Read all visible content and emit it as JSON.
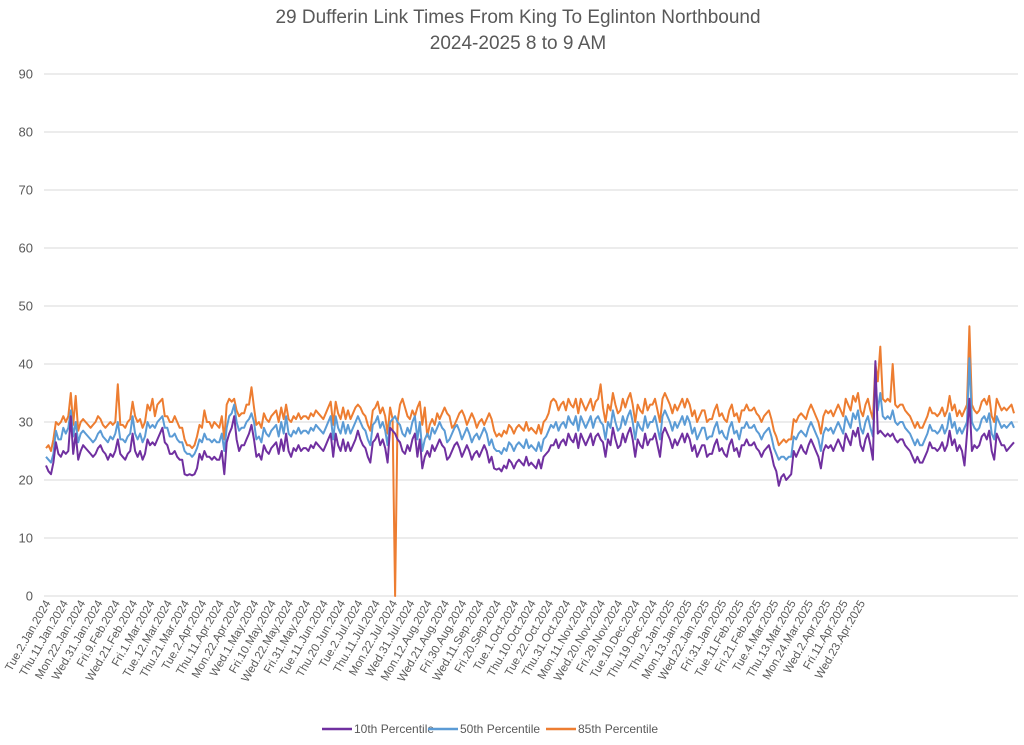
{
  "chart_data": {
    "type": "line",
    "title": "29 Dufferin Link Times From King To Eglinton Northbound",
    "subtitle": "2024-2025 8 to 9 AM",
    "xlabel": "",
    "ylabel": "",
    "ylim": [
      0,
      90
    ],
    "yticks": [
      0,
      10,
      20,
      30,
      40,
      50,
      60,
      70,
      80,
      90
    ],
    "grid": true,
    "legend_position": "bottom",
    "x_start": "2024-01-02",
    "x_frequency": "weekdays",
    "xtick_labels": [
      "Tue.2.Jan.2024",
      "Thu.11.Jan.2024",
      "Mon.22.Jan.2024",
      "Wed.31.Jan.2024",
      "Fri.9.Feb.2024",
      "Wed.21.Feb.2024",
      "Fri.1.Mar.2024",
      "Tue.12.Mar.2024",
      "Thu.21.Mar.2024",
      "Tue.2.Apr.2024",
      "Thu.11.Apr.2024",
      "Mon.22.Apr.2024",
      "Wed.1.May.2024",
      "Fri.10.May.2024",
      "Wed.22.May.2024",
      "Fri.31.May.2024",
      "Tue.11.Jun.2024",
      "Thu.20.Jun.2024",
      "Tue.2.Jul.2024",
      "Thu.11.Jul.2024",
      "Mon.22.Jul.2024",
      "Wed.31.Jul.2024",
      "Mon.12.Aug.2024",
      "Wed.21.Aug.2024",
      "Fri.30.Aug.2024",
      "Wed.11.Sep.2024",
      "Fri.20.Sep.2024",
      "Tue.1.Oct.2024",
      "Thu.10.Oct.2024",
      "Tue.22.Oct.2024",
      "Thu.31.Oct.2024",
      "Mon.11.Nov.2024",
      "Wed.20.Nov.2024",
      "Fri.29.Nov.2024",
      "Tue.10.Dec.2024",
      "Thu.19.Dec.2024",
      "Thu.2.Jan.2025",
      "Mon.13.Jan.2025",
      "Wed.22.Jan.2025",
      "Fri.31.Jan.2025",
      "Tue.11.Feb.2025",
      "Fri.21.Feb.2025",
      "Tue.4.Mar.2025",
      "Thu.13.Mar.2025",
      "Mon.24.Mar.2025",
      "Wed.2.Apr.2025",
      "Fri.11.Apr.2025",
      "Wed.23.Apr.2025"
    ],
    "xtick_every": 7,
    "series": [
      {
        "name": "10th Percentile",
        "color": "#7030a0",
        "values": [
          22.5,
          21.5,
          21,
          23,
          26.5,
          24.5,
          24,
          25,
          24.5,
          25,
          31,
          24.5,
          28,
          23.5,
          25,
          26,
          25.5,
          25,
          24.5,
          24,
          24.5,
          25.5,
          26,
          25,
          24.5,
          23.5,
          24.5,
          24,
          25,
          27,
          24.5,
          24,
          23.5,
          24.5,
          25,
          28,
          25,
          24,
          25,
          23.5,
          24.5,
          27,
          26,
          26.5,
          26,
          27,
          28,
          29,
          26.5,
          26,
          24.5,
          24.5,
          25,
          24,
          23.5,
          23.5,
          21,
          20.8,
          21,
          20.8,
          21,
          22,
          24.5,
          23.5,
          25,
          24,
          24,
          23.5,
          24,
          23.5,
          23.5,
          25,
          21,
          26.5,
          28,
          29,
          31,
          27,
          25,
          26,
          26,
          27,
          28,
          29.5,
          27,
          24,
          24.5,
          23.5,
          26,
          25,
          24.5,
          25.5,
          26,
          26.5,
          24.5,
          27,
          25,
          28,
          25,
          24,
          25.5,
          25,
          26,
          25,
          25.5,
          25.5,
          25,
          26,
          25.5,
          26.5,
          26,
          25.5,
          25,
          26,
          27,
          28,
          24,
          28,
          26,
          25,
          27,
          25,
          26.5,
          25,
          26,
          27,
          28.5,
          27,
          26,
          25.5,
          24,
          23,
          26.5,
          27,
          28,
          26,
          27,
          25.5,
          23,
          29,
          28.5,
          28,
          27,
          26.5,
          25,
          24.5,
          26,
          25,
          27,
          28,
          24,
          27,
          22,
          24,
          25,
          24,
          26,
          25,
          26,
          27,
          26,
          25.5,
          23.5,
          24,
          25,
          26,
          26.5,
          25.5,
          24,
          25,
          26,
          25,
          23.5,
          24.5,
          25,
          24,
          25,
          26,
          25,
          23,
          24,
          22,
          21.8,
          22,
          21.5,
          22.5,
          22,
          23.5,
          23,
          22,
          23,
          23.5,
          23,
          22.5,
          24,
          22.5,
          23,
          22.5,
          22,
          23.5,
          22,
          24,
          24.5,
          25,
          26,
          26,
          27,
          25.5,
          26.5,
          27,
          26,
          28,
          27,
          26.5,
          28,
          25.5,
          28,
          27,
          26,
          27,
          28,
          26,
          27.5,
          28,
          27,
          26.5,
          24,
          27,
          26,
          29,
          27,
          25.5,
          26,
          28,
          26.5,
          28,
          29,
          27,
          24,
          27,
          26,
          25.5,
          28,
          26,
          27,
          27,
          28,
          26,
          24,
          28,
          29,
          28,
          27,
          25.5,
          27,
          26,
          27,
          28,
          26.5,
          28,
          27,
          25,
          26,
          24,
          25,
          26,
          26,
          24,
          24.5,
          24.5,
          26,
          27,
          25,
          25.5,
          24.5,
          24,
          26,
          27,
          25,
          25.5,
          24,
          26,
          26,
          27,
          26,
          26,
          26.5,
          25.5,
          25,
          24,
          25,
          25.5,
          26,
          24.5,
          22.5,
          21.5,
          19,
          20.5,
          21,
          20,
          20.5,
          21,
          25,
          24,
          25,
          26,
          25,
          24.5,
          26,
          27,
          26,
          25,
          24,
          22,
          25,
          26,
          25.5,
          26,
          25,
          26,
          27,
          26,
          25,
          28,
          27,
          26,
          28.5,
          27.5,
          29,
          26,
          25,
          27,
          28,
          26,
          23.5,
          40.5,
          28,
          28.5,
          28,
          27.5,
          28,
          27.5,
          28,
          27,
          26.5,
          27,
          27,
          26,
          25.5,
          25,
          24,
          23,
          24,
          23,
          23,
          24,
          25,
          26.5,
          25.5,
          25.5,
          25,
          25.5,
          26.5,
          25,
          26,
          28.5,
          26,
          27,
          25,
          26,
          25,
          22.5,
          28,
          34,
          25,
          26,
          25.5,
          26,
          27.5,
          28,
          27,
          28.5,
          25,
          23.5,
          28,
          27,
          26,
          26,
          25,
          25.5,
          26,
          26.5
        ]
      },
      {
        "name": "50th Percentile",
        "color": "#5b9bd5",
        "values": [
          24,
          23.5,
          23,
          24.5,
          28.5,
          27,
          27,
          29,
          28,
          29,
          32,
          27.5,
          30,
          26.5,
          28,
          28.5,
          28,
          27.5,
          27,
          26.5,
          27,
          28,
          28.5,
          27.5,
          27,
          26.5,
          27.5,
          27,
          28,
          30,
          27,
          27,
          26.5,
          27.5,
          28,
          31,
          28,
          27,
          28,
          26.5,
          27.5,
          30,
          29,
          29.5,
          29,
          30,
          30.5,
          31,
          29,
          29,
          27.5,
          27.5,
          28,
          27,
          26.5,
          26.5,
          25,
          24.5,
          24.5,
          24,
          24.5,
          25.5,
          27,
          26.5,
          28,
          27,
          27,
          26.5,
          27,
          26.5,
          26.5,
          28,
          25,
          29,
          31,
          31.5,
          33,
          30,
          28.5,
          29,
          29,
          30,
          30.5,
          31.5,
          30,
          27,
          27.5,
          26.5,
          29,
          28,
          27.5,
          28.5,
          29,
          29.5,
          27.5,
          30,
          28,
          31,
          28,
          27.5,
          28.5,
          28,
          29,
          28,
          28.5,
          28.5,
          28,
          29,
          28.5,
          29.5,
          29,
          28.5,
          28,
          29,
          30,
          31,
          27,
          31,
          29,
          28,
          30,
          28,
          29.5,
          28,
          29,
          30,
          31,
          30,
          29,
          28.5,
          27,
          26,
          29.5,
          30,
          31,
          29,
          30,
          28.5,
          26,
          30,
          30.5,
          31,
          30,
          29.5,
          28,
          27.5,
          29,
          28,
          30,
          31,
          27,
          30,
          25,
          27,
          28,
          27,
          29,
          28,
          29,
          30,
          29,
          28.5,
          26.5,
          27,
          28,
          29,
          29.5,
          28.5,
          27,
          28,
          29,
          28,
          26.5,
          27.5,
          28,
          27,
          28,
          29,
          28,
          26,
          27,
          25.5,
          25,
          25,
          24.5,
          25.5,
          25,
          26.5,
          26,
          25,
          26,
          26.5,
          26,
          25.5,
          27,
          25.5,
          26,
          25.5,
          25,
          26.5,
          25,
          27,
          27.5,
          28.5,
          29.5,
          29,
          30,
          28.5,
          29.5,
          30,
          29,
          31,
          30,
          29.5,
          31,
          28.5,
          31,
          30,
          29,
          30,
          31,
          29,
          30.5,
          31,
          30,
          29.5,
          27,
          30,
          29,
          32,
          30,
          28.5,
          29,
          31,
          29.5,
          31,
          32,
          30,
          27,
          30,
          29,
          28.5,
          31,
          29,
          30,
          30,
          31,
          29,
          27,
          31,
          32,
          31,
          30,
          28.5,
          30,
          29,
          30,
          31,
          29.5,
          31,
          30,
          28,
          29,
          27,
          28,
          29,
          29,
          27,
          27.5,
          27.5,
          29,
          30,
          28,
          28.5,
          27.5,
          27,
          29,
          30,
          28,
          28.5,
          27,
          29,
          29,
          30,
          29,
          29,
          29.5,
          28.5,
          28,
          27,
          28,
          28.5,
          29,
          27.5,
          25.5,
          24.5,
          23.5,
          24,
          24,
          23.5,
          24,
          24,
          27.5,
          27,
          28,
          28.5,
          28,
          27.5,
          29,
          30,
          29,
          28,
          27,
          25,
          28,
          29,
          28.5,
          29,
          28,
          29,
          30,
          29,
          28,
          31,
          30,
          29,
          31.5,
          30.5,
          32,
          29,
          28,
          30,
          31,
          29,
          27.5,
          37.5,
          32,
          35,
          31,
          30.5,
          31,
          30.5,
          32,
          30,
          29.5,
          30,
          30,
          29,
          28.5,
          28,
          27,
          26,
          27,
          26,
          26,
          27,
          28,
          29.5,
          28.5,
          28.5,
          28,
          28.5,
          29.5,
          28,
          29,
          31.5,
          29,
          30,
          28,
          29,
          28,
          29,
          30,
          41,
          30,
          29,
          28.5,
          29,
          30.5,
          31,
          30,
          31.5,
          28,
          27,
          31,
          30,
          29,
          29.5,
          29,
          29.5,
          30,
          29
        ]
      },
      {
        "name": "85th Percentile",
        "color": "#ed7d31",
        "values": [
          25.5,
          26,
          25,
          27,
          30,
          29.5,
          30,
          31,
          30,
          31,
          35,
          29.5,
          34.5,
          28.5,
          30,
          30.5,
          30,
          29.5,
          29,
          29.5,
          30,
          31,
          30.5,
          29.5,
          29,
          29.5,
          30,
          29.5,
          30,
          36.5,
          29.5,
          29.5,
          29,
          30,
          30.5,
          33.5,
          31,
          30,
          30.5,
          29,
          30,
          33,
          32,
          34,
          31,
          33,
          33.5,
          34,
          31,
          31,
          30,
          30,
          31,
          30,
          29,
          29,
          27,
          26,
          26,
          25.5,
          26,
          27.5,
          29.5,
          29,
          32,
          30,
          30,
          29,
          30,
          29.5,
          29,
          31,
          27,
          33,
          34,
          33.5,
          34,
          32,
          31,
          31.5,
          31.5,
          33,
          33,
          36,
          32.5,
          29.5,
          30,
          29,
          31.5,
          30.5,
          30,
          31,
          31.5,
          32,
          30,
          32.5,
          30.5,
          33,
          30.5,
          30,
          31,
          30.5,
          31.5,
          30.5,
          31,
          31,
          30.5,
          31.5,
          31,
          32,
          31.5,
          31,
          30.5,
          31.5,
          32.5,
          33.5,
          29.5,
          33.5,
          31.5,
          30.5,
          32.5,
          30.5,
          32,
          30.5,
          31.5,
          32.5,
          33,
          32.5,
          31.5,
          31,
          29.5,
          28.5,
          32,
          32.5,
          33.5,
          31.5,
          32.5,
          31,
          28,
          32.5,
          30.5,
          0,
          30,
          33,
          34,
          32.5,
          31,
          30.5,
          32,
          31,
          32.5,
          33.5,
          29.5,
          32.5,
          27.5,
          29.5,
          30.5,
          29.5,
          31.5,
          30.5,
          31.5,
          32.5,
          31.5,
          31,
          29,
          29.5,
          30.5,
          31.5,
          32,
          31,
          29.5,
          30.5,
          31.5,
          30.5,
          29,
          30,
          30.5,
          29.5,
          30.5,
          31.5,
          30.5,
          28.5,
          27.5,
          28,
          27.5,
          28.5,
          28,
          29.5,
          29,
          28,
          29,
          29.5,
          29,
          28.5,
          30,
          28.5,
          29,
          28.5,
          28,
          29.5,
          28,
          30,
          30.5,
          31.5,
          33.5,
          34,
          33.5,
          32,
          33,
          33.5,
          32,
          34,
          33,
          32.5,
          34,
          31.5,
          34,
          33,
          32,
          33,
          34,
          32,
          33.5,
          34,
          36.5,
          32.5,
          30,
          33,
          32,
          35,
          33,
          31.5,
          32,
          34,
          32.5,
          34,
          35,
          33,
          30,
          33,
          32,
          31.5,
          34,
          32,
          33,
          33,
          34,
          32,
          30,
          34,
          35,
          34,
          33,
          31.5,
          33,
          32,
          33,
          34,
          32.5,
          34,
          33,
          31,
          32,
          30,
          31,
          32,
          32,
          30,
          30.5,
          30.5,
          32,
          33,
          31,
          31.5,
          30.5,
          30,
          32,
          33,
          31,
          31.5,
          30,
          32,
          32,
          33,
          32,
          32,
          32.5,
          31.5,
          31,
          30,
          31,
          31.5,
          32,
          30.5,
          28.5,
          27.5,
          26,
          26.5,
          27,
          26.5,
          27,
          27,
          30.5,
          30,
          31,
          31.5,
          31,
          30.5,
          32,
          33,
          32,
          31,
          30,
          28,
          31,
          32,
          31.5,
          32,
          31,
          32,
          33,
          32,
          31,
          34,
          33,
          32,
          34.5,
          33.5,
          35,
          32,
          31,
          33,
          34,
          32,
          30.5,
          40,
          37,
          43,
          34,
          33.5,
          34,
          33.5,
          40,
          33,
          32.5,
          33,
          33,
          32,
          31.5,
          31,
          30,
          29,
          30,
          29,
          29,
          30,
          31,
          32.5,
          31.5,
          31.5,
          31,
          31.5,
          32.5,
          31,
          32,
          34.5,
          32,
          33,
          31,
          32,
          31,
          32,
          33,
          46.5,
          33,
          32,
          31.5,
          32,
          33.5,
          34,
          33,
          34.5,
          31,
          30,
          34,
          33,
          32,
          32.5,
          32,
          32.5,
          33,
          31.5
        ]
      }
    ]
  }
}
